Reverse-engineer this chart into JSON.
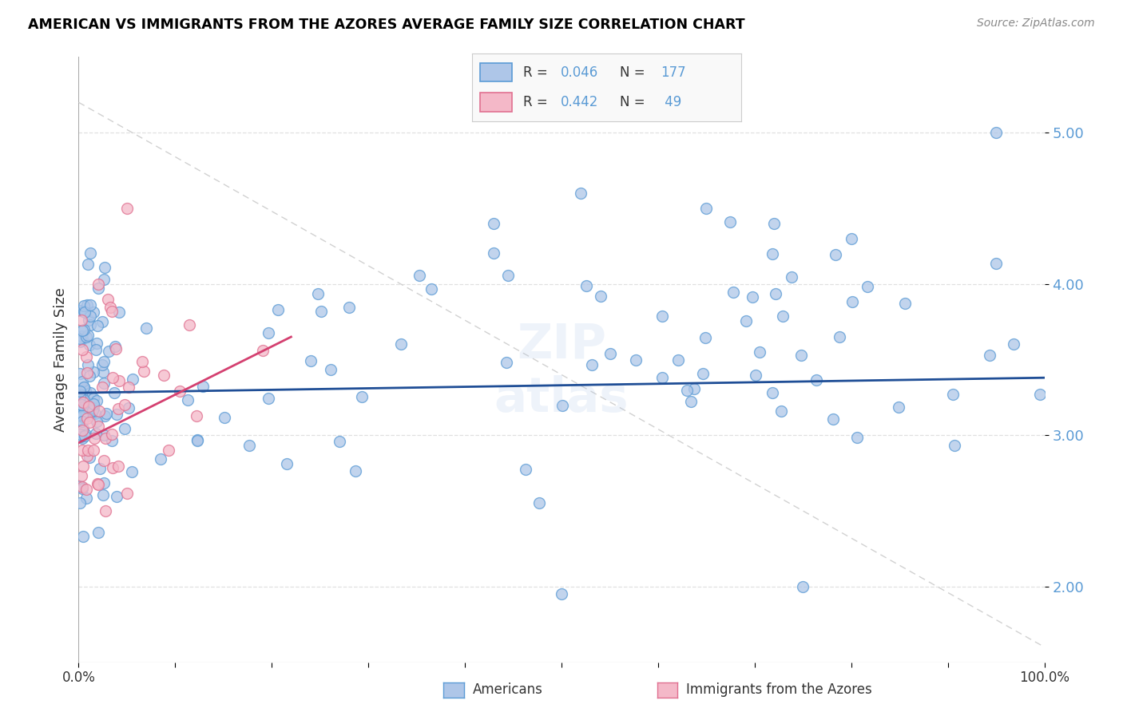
{
  "title": "AMERICAN VS IMMIGRANTS FROM THE AZORES AVERAGE FAMILY SIZE CORRELATION CHART",
  "source": "Source: ZipAtlas.com",
  "ylabel": "Average Family Size",
  "xlim": [
    0,
    100
  ],
  "ylim": [
    1.5,
    5.5
  ],
  "yticks": [
    2.0,
    3.0,
    4.0,
    5.0
  ],
  "blue_color": "#5b9bd5",
  "blue_face": "#aec6e8",
  "pink_color": "#e07090",
  "pink_face": "#f4b8c8",
  "trendline_blue_color": "#1f4e96",
  "trendline_pink_color": "#d44070",
  "diag_color": "#cccccc",
  "grid_color": "#dddddd",
  "title_color": "#000000",
  "source_color": "#888888",
  "axis_label_color": "#333333",
  "tick_label_color": "#5b9bd5",
  "bg_color": "#ffffff",
  "bottom_label_left": "Americans",
  "bottom_label_right": "Immigrants from the Azores",
  "legend_R_blue": "0.046",
  "legend_N_blue": "177",
  "legend_R_pink": "0.442",
  "legend_N_pink": "49",
  "watermark_color": "#aec6e8"
}
